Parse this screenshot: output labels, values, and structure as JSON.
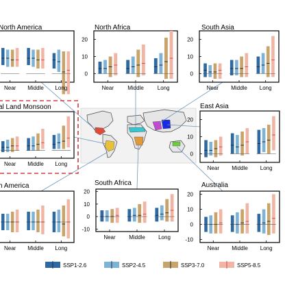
{
  "colors": {
    "ssp126": "#2e6aa1",
    "ssp245": "#7fb3d5",
    "ssp370": "#c9a46a",
    "ssp585": "#f1b5a6",
    "median_line": "#d94b4b",
    "frame": "#000000",
    "highlight_box": "#d43b3b",
    "connector": "#6a95b8"
  },
  "chart_data": [
    {
      "type": "bar",
      "title": "North America",
      "categories": [
        "Near",
        "Middle",
        "Long"
      ],
      "ylim": [
        -5,
        25
      ],
      "yticks": [],
      "series": [
        {
          "name": "SSP1-2.6",
          "ranges": [
            [
              5,
              15
            ],
            [
              5,
              15
            ],
            [
              3,
              12
            ]
          ],
          "medians": [
            9,
            9,
            8
          ]
        },
        {
          "name": "SSP2-4.5",
          "ranges": [
            [
              4,
              14
            ],
            [
              4,
              14
            ],
            [
              1,
              14
            ]
          ],
          "medians": [
            9,
            9,
            7
          ]
        },
        {
          "name": "SSP3-7.0",
          "ranges": [
            [
              4,
              14
            ],
            [
              3,
              14
            ],
            [
              -12,
              13
            ]
          ],
          "medians": [
            8,
            8,
            1
          ]
        },
        {
          "name": "SSP5-8.5",
          "ranges": [
            [
              4,
              15
            ],
            [
              3,
              15
            ],
            [
              -12,
              13
            ]
          ],
          "medians": [
            8,
            8,
            2
          ]
        }
      ]
    },
    {
      "type": "bar",
      "title": "North Africa",
      "categories": [
        "Near",
        "Middle",
        "Long"
      ],
      "ylim": [
        -5,
        25
      ],
      "yticks": [
        "20",
        "10",
        "0"
      ],
      "series": [
        {
          "name": "SSP1-2.6",
          "ranges": [
            [
              0,
              7
            ],
            [
              0,
              8
            ],
            [
              0,
              9
            ]
          ],
          "medians": [
            3,
            3,
            4
          ]
        },
        {
          "name": "SSP2-4.5",
          "ranges": [
            [
              0,
              8
            ],
            [
              0,
              10
            ],
            [
              0,
              12
            ]
          ],
          "medians": [
            3,
            4,
            5
          ]
        },
        {
          "name": "SSP3-7.0",
          "ranges": [
            [
              -2,
              10
            ],
            [
              -2,
              14
            ],
            [
              -3,
              21
            ]
          ],
          "medians": [
            4,
            5,
            7
          ]
        },
        {
          "name": "SSP5-8.5",
          "ranges": [
            [
              -1,
              12
            ],
            [
              -1,
              17
            ],
            [
              -3,
              25
            ]
          ],
          "medians": [
            5,
            6,
            9
          ]
        }
      ]
    },
    {
      "type": "bar",
      "title": "South Asia",
      "categories": [
        "Near",
        "Middle",
        "Long"
      ],
      "ylim": [
        -5,
        25
      ],
      "yticks": [
        "20",
        "10",
        "0"
      ],
      "series": [
        {
          "name": "SSP1-2.6",
          "ranges": [
            [
              -2,
              6
            ],
            [
              -1,
              8
            ],
            [
              0,
              10
            ]
          ],
          "medians": [
            2,
            3,
            4
          ]
        },
        {
          "name": "SSP2-4.5",
          "ranges": [
            [
              -2,
              5
            ],
            [
              -1,
              8
            ],
            [
              0,
              12
            ]
          ],
          "medians": [
            1,
            3,
            5
          ]
        },
        {
          "name": "SSP3-7.0",
          "ranges": [
            [
              -3,
              6
            ],
            [
              -2,
              10
            ],
            [
              -2,
              16
            ]
          ],
          "medians": [
            1,
            3,
            6
          ]
        },
        {
          "name": "SSP5-8.5",
          "ranges": [
            [
              -3,
              6
            ],
            [
              -2,
              12
            ],
            [
              -2,
              22
            ]
          ],
          "medians": [
            2,
            4,
            8
          ]
        }
      ]
    },
    {
      "type": "bar",
      "title": "Global Land Monsoon",
      "title_visible": "al Land Monsoon",
      "categories": [
        "Near",
        "Middle",
        "Long"
      ],
      "ylim": [
        -5,
        25
      ],
      "yticks": [],
      "series": [
        {
          "name": "SSP1-2.6",
          "ranges": [
            [
              -1,
              6
            ],
            [
              0,
              8
            ],
            [
              1,
              10
            ]
          ],
          "medians": [
            2,
            3,
            4
          ]
        },
        {
          "name": "SSP2-4.5",
          "ranges": [
            [
              -1,
              7
            ],
            [
              0,
              9
            ],
            [
              1,
              11
            ]
          ],
          "medians": [
            2,
            3,
            5
          ]
        },
        {
          "name": "SSP3-7.0",
          "ranges": [
            [
              -1,
              8
            ],
            [
              0,
              11
            ],
            [
              1,
              16
            ]
          ],
          "medians": [
            3,
            4,
            6
          ]
        },
        {
          "name": "SSP5-8.5",
          "ranges": [
            [
              0,
              9
            ],
            [
              1,
              14
            ],
            [
              2,
              22
            ]
          ],
          "medians": [
            3,
            5,
            8
          ]
        }
      ]
    },
    {
      "type": "bar",
      "title": "East Asia",
      "categories": [
        "Near",
        "Middle",
        "Long"
      ],
      "ylim": [
        -5,
        25
      ],
      "yticks": [
        "20",
        "10",
        "0"
      ],
      "series": [
        {
          "name": "SSP1-2.6",
          "ranges": [
            [
              -2,
              8
            ],
            [
              0,
              12
            ],
            [
              0,
              14
            ]
          ],
          "medians": [
            2,
            5,
            6
          ]
        },
        {
          "name": "SSP2-4.5",
          "ranges": [
            [
              -1,
              7
            ],
            [
              0,
              11
            ],
            [
              1,
              15
            ]
          ],
          "medians": [
            2,
            4,
            7
          ]
        },
        {
          "name": "SSP3-7.0",
          "ranges": [
            [
              -2,
              8
            ],
            [
              -1,
              13
            ],
            [
              0,
              17
            ]
          ],
          "medians": [
            3,
            5,
            8
          ]
        },
        {
          "name": "SSP5-8.5",
          "ranges": [
            [
              -1,
              10
            ],
            [
              0,
              15
            ],
            [
              2,
              22
            ]
          ],
          "medians": [
            4,
            7,
            11
          ]
        }
      ]
    },
    {
      "type": "bar",
      "title": "South America",
      "title_visible": "h America",
      "categories": [
        "Near",
        "Middle",
        "Long"
      ],
      "ylim": [
        -10,
        15
      ],
      "yticks": [],
      "series": [
        {
          "name": "SSP1-2.6",
          "ranges": [
            [
              -4,
              4
            ],
            [
              -4,
              5
            ],
            [
              -5,
              5
            ]
          ],
          "medians": [
            0,
            0,
            0
          ]
        },
        {
          "name": "SSP2-4.5",
          "ranges": [
            [
              -4,
              4
            ],
            [
              -4,
              5
            ],
            [
              -5,
              6
            ]
          ],
          "medians": [
            0,
            0,
            0
          ]
        },
        {
          "name": "SSP3-7.0",
          "ranges": [
            [
              -5,
              5
            ],
            [
              -5,
              6
            ],
            [
              -7,
              8
            ]
          ],
          "medians": [
            0,
            0,
            -1
          ]
        },
        {
          "name": "SSP5-8.5",
          "ranges": [
            [
              -5,
              6
            ],
            [
              -6,
              8
            ],
            [
              -8,
              11
            ]
          ],
          "medians": [
            0,
            0,
            0
          ]
        }
      ]
    },
    {
      "type": "bar",
      "title": "South Africa",
      "categories": [
        "Near",
        "Middle",
        "Long"
      ],
      "ylim": [
        -12,
        22
      ],
      "yticks": [
        "20",
        "10",
        "0",
        "-10"
      ],
      "series": [
        {
          "name": "SSP1-2.6",
          "ranges": [
            [
              -4,
              5
            ],
            [
              -4,
              6
            ],
            [
              -4,
              7
            ]
          ],
          "medians": [
            0,
            0,
            1
          ]
        },
        {
          "name": "SSP2-4.5",
          "ranges": [
            [
              -4,
              5
            ],
            [
              -4,
              7
            ],
            [
              -3,
              9
            ]
          ],
          "medians": [
            0,
            1,
            2
          ]
        },
        {
          "name": "SSP3-7.0",
          "ranges": [
            [
              -5,
              6
            ],
            [
              -5,
              10
            ],
            [
              -4,
              14
            ]
          ],
          "medians": [
            0,
            1,
            3
          ]
        },
        {
          "name": "SSP5-8.5",
          "ranges": [
            [
              -5,
              7
            ],
            [
              -5,
              12
            ],
            [
              -4,
              18
            ]
          ],
          "medians": [
            1,
            2,
            5
          ]
        }
      ]
    },
    {
      "type": "bar",
      "title": "Australia",
      "categories": [
        "Near",
        "Middle",
        "Long"
      ],
      "ylim": [
        -12,
        22
      ],
      "yticks": [
        "20",
        "10",
        "0",
        "-10"
      ],
      "series": [
        {
          "name": "SSP1-2.6",
          "ranges": [
            [
              -5,
              5
            ],
            [
              -5,
              6
            ],
            [
              -5,
              7
            ]
          ],
          "medians": [
            0,
            0,
            0
          ]
        },
        {
          "name": "SSP2-4.5",
          "ranges": [
            [
              -6,
              6
            ],
            [
              -6,
              8
            ],
            [
              -6,
              10
            ]
          ],
          "medians": [
            0,
            0,
            1
          ]
        },
        {
          "name": "SSP3-7.0",
          "ranges": [
            [
              -6,
              8
            ],
            [
              -6,
              10
            ],
            [
              -7,
              14
            ]
          ],
          "medians": [
            0,
            1,
            2
          ]
        },
        {
          "name": "SSP5-8.5",
          "ranges": [
            [
              -6,
              10
            ],
            [
              -6,
              14
            ],
            [
              -6,
              20
            ]
          ],
          "medians": [
            1,
            2,
            4
          ]
        }
      ]
    }
  ],
  "legend": [
    {
      "label": "SSP1-2.6",
      "color_key": "ssp126"
    },
    {
      "label": "SSP2-4.5",
      "color_key": "ssp245"
    },
    {
      "label": "SSP3-7.0",
      "color_key": "ssp370"
    },
    {
      "label": "SSP5-8.5",
      "color_key": "ssp585"
    }
  ]
}
